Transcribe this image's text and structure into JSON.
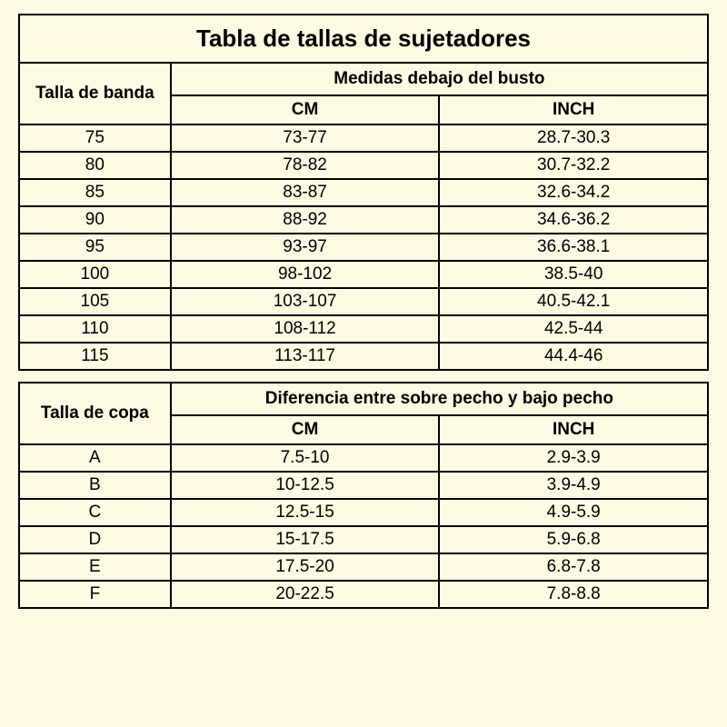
{
  "title": "Tabla de tallas de sujetadores",
  "table1": {
    "rowHeader": "Talla de banda",
    "spanHeader": "Medidas debajo del busto",
    "col1": "CM",
    "col2": "INCH",
    "rows": [
      {
        "band": "75",
        "cm": "73-77",
        "inch": "28.7-30.3"
      },
      {
        "band": "80",
        "cm": "78-82",
        "inch": "30.7-32.2"
      },
      {
        "band": "85",
        "cm": "83-87",
        "inch": "32.6-34.2"
      },
      {
        "band": "90",
        "cm": "88-92",
        "inch": "34.6-36.2"
      },
      {
        "band": "95",
        "cm": "93-97",
        "inch": "36.6-38.1"
      },
      {
        "band": "100",
        "cm": "98-102",
        "inch": "38.5-40"
      },
      {
        "band": "105",
        "cm": "103-107",
        "inch": "40.5-42.1"
      },
      {
        "band": "110",
        "cm": "108-112",
        "inch": "42.5-44"
      },
      {
        "band": "115",
        "cm": "113-117",
        "inch": "44.4-46"
      }
    ]
  },
  "table2": {
    "rowHeader": "Talla de copa",
    "spanHeader": "Diferencia entre sobre pecho y bajo pecho",
    "col1": "CM",
    "col2": "INCH",
    "rows": [
      {
        "cup": "A",
        "cm": "7.5-10",
        "inch": "2.9-3.9"
      },
      {
        "cup": "B",
        "cm": "10-12.5",
        "inch": "3.9-4.9"
      },
      {
        "cup": "C",
        "cm": "12.5-15",
        "inch": "4.9-5.9"
      },
      {
        "cup": "D",
        "cm": "15-17.5",
        "inch": "5.9-6.8"
      },
      {
        "cup": "E",
        "cm": "17.5-20",
        "inch": "6.8-7.8"
      },
      {
        "cup": "F",
        "cm": "20-22.5",
        "inch": "7.8-8.8"
      }
    ]
  },
  "style": {
    "background_color": "#fdf9e3",
    "border_color": "#000000",
    "text_color": "#000000",
    "title_fontsize": 26,
    "header_fontsize": 19,
    "data_fontsize": 19,
    "col_widths_pct": [
      22,
      39,
      39
    ]
  }
}
